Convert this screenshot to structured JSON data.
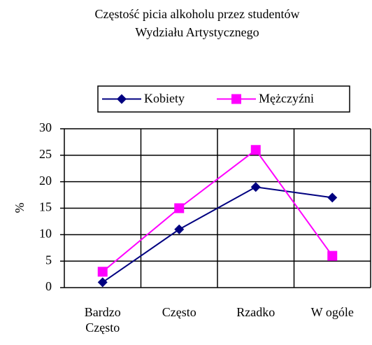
{
  "chart_data": {
    "type": "line",
    "title": [
      "Częstość picia alkoholu przez studentów",
      "Wydziału Artystycznego"
    ],
    "ylabel": "%",
    "categories": [
      "Bardzo Często",
      "Często",
      "Rzadko",
      "W ogóle"
    ],
    "series": [
      {
        "name": "Kobiety",
        "color": "#000080",
        "marker": "diamond",
        "values": [
          1,
          11,
          19,
          17
        ]
      },
      {
        "name": "Mężczyźni",
        "color": "#ff00ff",
        "marker": "square",
        "values": [
          3,
          15,
          26,
          6
        ]
      }
    ],
    "ylim": [
      0,
      30
    ],
    "yticks": [
      0,
      5,
      10,
      15,
      20,
      25,
      30
    ],
    "grid": true,
    "legend": "top"
  }
}
